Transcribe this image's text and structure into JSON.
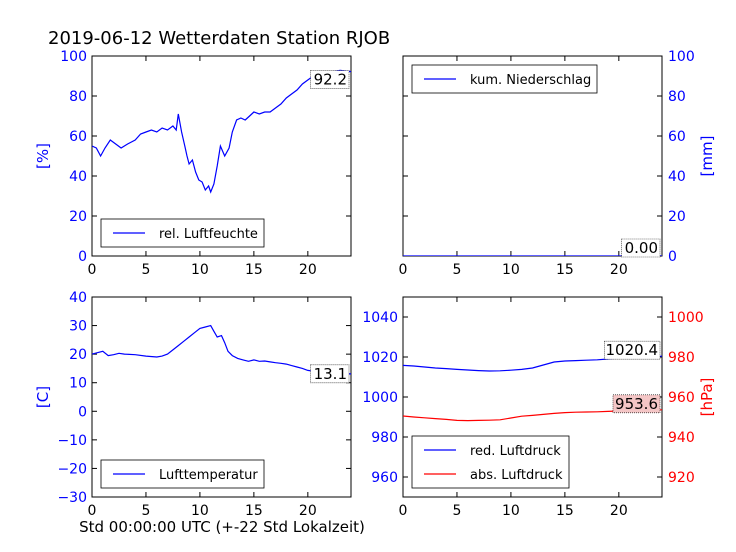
{
  "title": "2019-06-12 Wetterdaten Station RJOB",
  "footer_xlabel": "Std 00:00:00 UTC (+-22 Std Lokalzeit)",
  "colors": {
    "blue": "#0000ff",
    "red": "#ff0000",
    "axis": "#000000",
    "badge_red_bg": "#f4c6c6"
  },
  "chart_data": [
    {
      "type": "line",
      "panel": "top-left",
      "ylabel": "[%]",
      "ylabel_color": "#0000ff",
      "x_range": [
        0,
        24
      ],
      "ylim": [
        0,
        100
      ],
      "x_ticks": [
        0,
        5,
        10,
        15,
        20
      ],
      "y_ticks": [
        0,
        20,
        40,
        60,
        80,
        100
      ],
      "y_tick_color": "#0000ff",
      "legend_position": "lower-left",
      "last_value_label": "92.2",
      "series": [
        {
          "name": "rel. Luftfeuchte",
          "color": "#0000ff",
          "points": [
            [
              0,
              55
            ],
            [
              0.4,
              54
            ],
            [
              0.8,
              50
            ],
            [
              1.2,
              54
            ],
            [
              1.7,
              58
            ],
            [
              2.2,
              56
            ],
            [
              2.7,
              54
            ],
            [
              3.3,
              56
            ],
            [
              4,
              58
            ],
            [
              4.5,
              61
            ],
            [
              5,
              62
            ],
            [
              5.5,
              63
            ],
            [
              6,
              62
            ],
            [
              6.5,
              64
            ],
            [
              7,
              63
            ],
            [
              7.5,
              65
            ],
            [
              7.8,
              63
            ],
            [
              8,
              71
            ],
            [
              8.3,
              62
            ],
            [
              8.6,
              55
            ],
            [
              8.8,
              50
            ],
            [
              9,
              46
            ],
            [
              9.3,
              48
            ],
            [
              9.6,
              42
            ],
            [
              9.9,
              38
            ],
            [
              10.2,
              37
            ],
            [
              10.5,
              33
            ],
            [
              10.8,
              35
            ],
            [
              11,
              32
            ],
            [
              11.3,
              36
            ],
            [
              11.6,
              45
            ],
            [
              11.9,
              55
            ],
            [
              12.3,
              50
            ],
            [
              12.7,
              54
            ],
            [
              13,
              62
            ],
            [
              13.4,
              68
            ],
            [
              13.8,
              69
            ],
            [
              14.2,
              68
            ],
            [
              14.6,
              70
            ],
            [
              15,
              72
            ],
            [
              15.5,
              71
            ],
            [
              16,
              72
            ],
            [
              16.5,
              72
            ],
            [
              17,
              74
            ],
            [
              17.5,
              76
            ],
            [
              18,
              79
            ],
            [
              18.5,
              81
            ],
            [
              19,
              83
            ],
            [
              19.5,
              86
            ],
            [
              20,
              88
            ],
            [
              20.5,
              90
            ],
            [
              21,
              91
            ],
            [
              22,
              92
            ],
            [
              23,
              92.8
            ],
            [
              24,
              92.2
            ]
          ]
        }
      ]
    },
    {
      "type": "line",
      "panel": "top-right",
      "ylabel": "[mm]",
      "ylabel_color": "#0000ff",
      "x_range": [
        0,
        24
      ],
      "ylim": [
        0,
        100
      ],
      "x_ticks": [
        0,
        5,
        10,
        15,
        20
      ],
      "y_ticks": [
        0,
        20,
        40,
        60,
        80,
        100
      ],
      "y_tick_color": "#0000ff",
      "y_axis_side": "right",
      "legend_position": "upper-left",
      "last_value_label": "0.00",
      "series": [
        {
          "name": "kum. Niederschlag",
          "color": "#0000ff",
          "points": [
            [
              0,
              0
            ],
            [
              24,
              0
            ]
          ]
        }
      ]
    },
    {
      "type": "line",
      "panel": "bottom-left",
      "ylabel": "[C]",
      "ylabel_color": "#0000ff",
      "x_range": [
        0,
        24
      ],
      "ylim": [
        -30,
        40
      ],
      "x_ticks": [
        0,
        5,
        10,
        15,
        20
      ],
      "y_ticks": [
        -30,
        -20,
        -10,
        0,
        10,
        20,
        30,
        40
      ],
      "y_tick_color": "#0000ff",
      "legend_position": "lower-left",
      "last_value_label": "13.1",
      "series": [
        {
          "name": "Lufttemperatur",
          "color": "#0000ff",
          "points": [
            [
              0,
              20
            ],
            [
              0.5,
              20.5
            ],
            [
              1,
              21
            ],
            [
              1.5,
              19.5
            ],
            [
              2,
              19.8
            ],
            [
              2.5,
              20.3
            ],
            [
              3,
              20
            ],
            [
              4,
              19.8
            ],
            [
              5,
              19.3
            ],
            [
              6,
              19
            ],
            [
              6.5,
              19.3
            ],
            [
              7,
              20
            ],
            [
              7.5,
              21.5
            ],
            [
              8,
              23
            ],
            [
              8.5,
              24.5
            ],
            [
              9,
              26
            ],
            [
              9.5,
              27.5
            ],
            [
              10,
              29
            ],
            [
              10.5,
              29.5
            ],
            [
              11,
              30
            ],
            [
              11.3,
              28
            ],
            [
              11.6,
              26
            ],
            [
              12,
              26.5
            ],
            [
              12.3,
              24
            ],
            [
              12.6,
              21
            ],
            [
              13,
              19.5
            ],
            [
              13.5,
              18.5
            ],
            [
              14,
              18
            ],
            [
              14.5,
              17.5
            ],
            [
              15,
              18
            ],
            [
              15.5,
              17.5
            ],
            [
              16,
              17.6
            ],
            [
              16.5,
              17.3
            ],
            [
              17,
              17
            ],
            [
              17.5,
              16.8
            ],
            [
              18,
              16.5
            ],
            [
              18.5,
              16
            ],
            [
              19,
              15.5
            ],
            [
              19.5,
              15
            ],
            [
              20,
              14.3
            ],
            [
              21,
              13.8
            ],
            [
              22,
              13.4
            ],
            [
              23,
              13.2
            ],
            [
              24,
              13.1
            ]
          ]
        }
      ]
    },
    {
      "type": "line",
      "panel": "bottom-right",
      "ylabel": "[hPa]",
      "ylabel_color": "#ff0000",
      "x_range": [
        0,
        24
      ],
      "ylim_left": [
        950,
        1050
      ],
      "y_ticks_left": [
        960,
        980,
        1000,
        1020,
        1040
      ],
      "y_tick_left_color": "#0000ff",
      "ylim_right": [
        910,
        1010
      ],
      "y_ticks_right": [
        920,
        940,
        960,
        980,
        1000
      ],
      "y_tick_right_color": "#ff0000",
      "x_ticks": [
        0,
        5,
        10,
        15,
        20
      ],
      "legend_position": "lower-left",
      "series": [
        {
          "name": "red. Luftdruck",
          "color": "#0000ff",
          "axis": "left",
          "last_value_label": "1020.4",
          "points": [
            [
              0,
              1015.8
            ],
            [
              1,
              1015.5
            ],
            [
              2,
              1015
            ],
            [
              3,
              1014.5
            ],
            [
              4,
              1014.2
            ],
            [
              5,
              1013.8
            ],
            [
              6,
              1013.5
            ],
            [
              7,
              1013.2
            ],
            [
              8,
              1013
            ],
            [
              9,
              1013.1
            ],
            [
              10,
              1013.4
            ],
            [
              11,
              1013.8
            ],
            [
              12,
              1014.5
            ],
            [
              13,
              1016
            ],
            [
              14,
              1017.5
            ],
            [
              15,
              1018
            ],
            [
              16,
              1018.2
            ],
            [
              17,
              1018.4
            ],
            [
              18,
              1018.6
            ],
            [
              19,
              1019
            ],
            [
              20,
              1019.5
            ],
            [
              21,
              1019.8
            ],
            [
              22,
              1020
            ],
            [
              23,
              1020.3
            ],
            [
              24,
              1020.4
            ]
          ]
        },
        {
          "name": "abs. Luftdruck",
          "color": "#ff0000",
          "axis": "right",
          "last_value_label": "953.6",
          "points": [
            [
              0,
              950.5
            ],
            [
              1,
              950
            ],
            [
              2,
              949.6
            ],
            [
              3,
              949.2
            ],
            [
              4,
              948.8
            ],
            [
              5,
              948.3
            ],
            [
              6,
              948.2
            ],
            [
              7,
              948.3
            ],
            [
              8,
              948.4
            ],
            [
              9,
              948.6
            ],
            [
              10,
              949.5
            ],
            [
              11,
              950.4
            ],
            [
              12,
              950.8
            ],
            [
              13,
              951.3
            ],
            [
              14,
              951.8
            ],
            [
              15,
              952.2
            ],
            [
              16,
              952.4
            ],
            [
              17,
              952.5
            ],
            [
              18,
              952.6
            ],
            [
              19,
              952.8
            ],
            [
              20,
              953
            ],
            [
              21,
              953.2
            ],
            [
              22,
              953.4
            ],
            [
              23,
              953.5
            ],
            [
              24,
              953.6
            ]
          ]
        }
      ]
    }
  ]
}
